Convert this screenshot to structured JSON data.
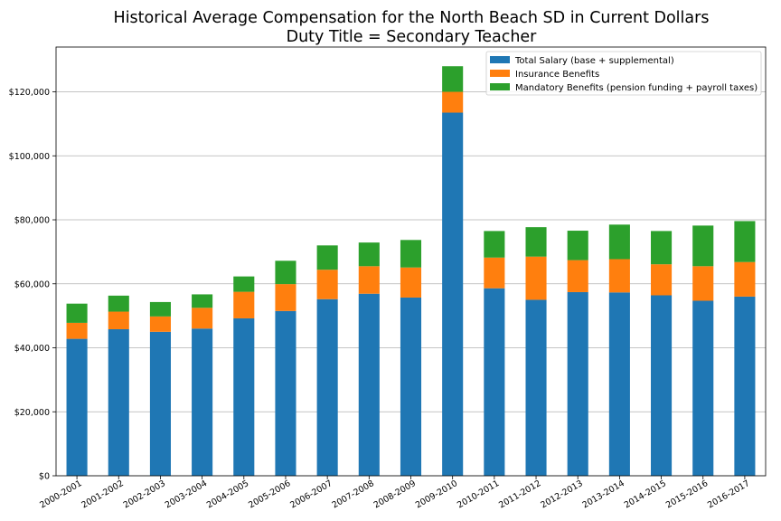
{
  "chart_data": {
    "type": "bar",
    "stacked": true,
    "title": "Historical Average Compensation for the North Beach SD in Current Dollars",
    "subtitle": "Duty Title = Secondary Teacher",
    "xlabel": "",
    "ylabel": "",
    "ylim": [
      0,
      134000
    ],
    "grid": "horizontal",
    "legend_position": "top-right",
    "yticks": [
      0,
      20000,
      40000,
      60000,
      80000,
      100000,
      120000
    ],
    "ytick_labels": [
      "$0",
      "$20,000",
      "$40,000",
      "$60,000",
      "$80,000",
      "$100,000",
      "$120,000"
    ],
    "categories": [
      "2000-2001",
      "2001-2002",
      "2002-2003",
      "2003-2004",
      "2004-2005",
      "2005-2006",
      "2006-2007",
      "2007-2008",
      "2008-2009",
      "2009-2010",
      "2010-2011",
      "2011-2012",
      "2012-2013",
      "2013-2014",
      "2014-2015",
      "2015-2016",
      "2016-2017"
    ],
    "series": [
      {
        "name": "Total Salary (base + supplemental)",
        "color": "#1f77b4",
        "values": [
          42800,
          45800,
          45000,
          46000,
          49200,
          51500,
          55200,
          56900,
          55700,
          113500,
          58600,
          55000,
          57400,
          57300,
          56400,
          54700,
          56000
        ]
      },
      {
        "name": "Insurance Benefits",
        "color": "#ff7f0e",
        "values": [
          5000,
          5500,
          4800,
          6500,
          8300,
          8400,
          9200,
          8600,
          9400,
          6500,
          9600,
          13500,
          10000,
          10400,
          9700,
          10800,
          10800
        ]
      },
      {
        "name": "Mandatory Benefits (pension funding + payroll taxes)",
        "color": "#2ca02c",
        "values": [
          6000,
          5000,
          4500,
          4200,
          4800,
          7300,
          7600,
          7400,
          8600,
          8000,
          8300,
          9200,
          9200,
          10800,
          10400,
          12700,
          12800
        ]
      }
    ]
  }
}
